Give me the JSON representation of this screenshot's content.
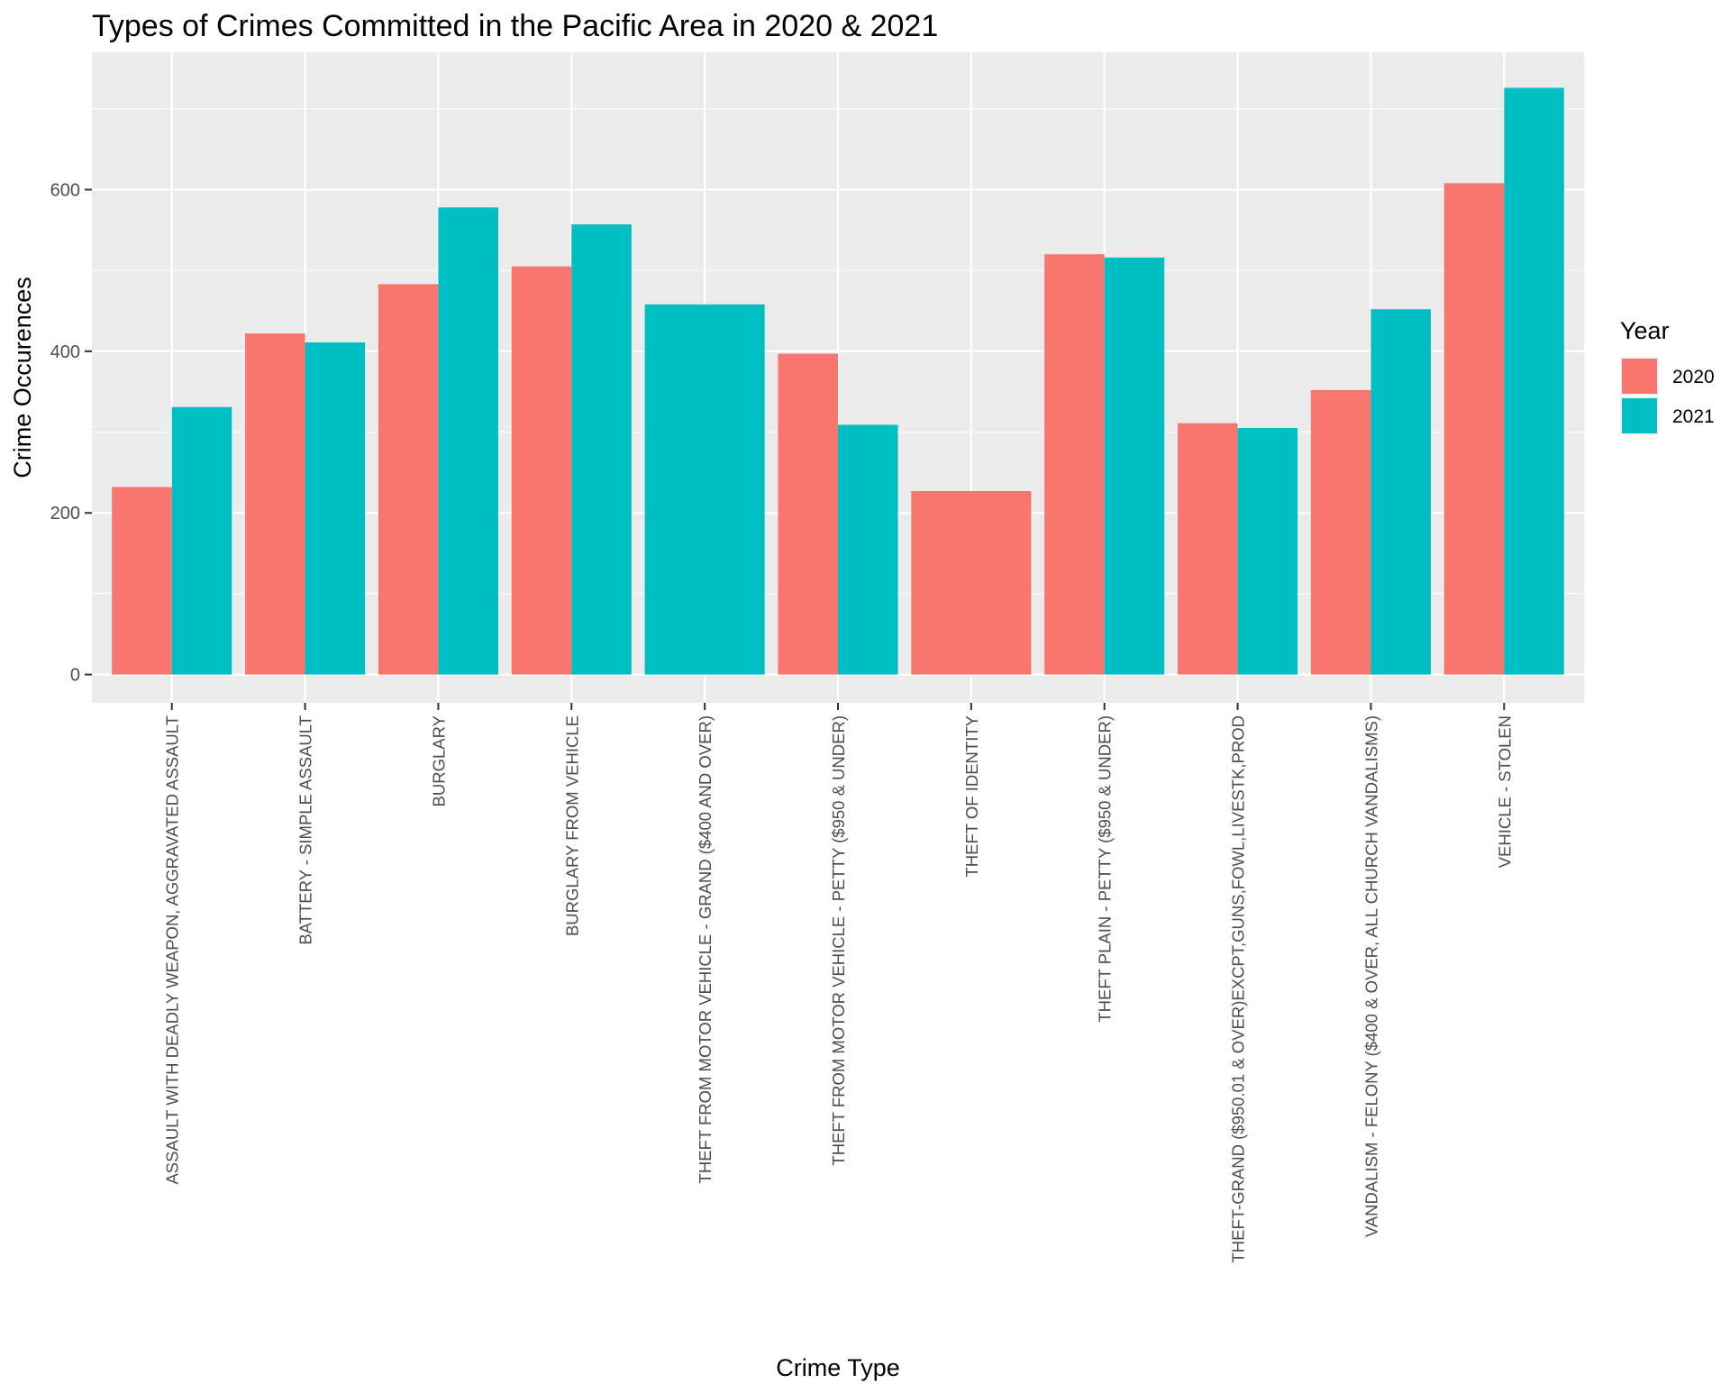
{
  "chart_data": {
    "type": "bar",
    "title": "Types of Crimes Committed in the Pacific Area in 2020 & 2021",
    "xlabel": "Crime Type",
    "ylabel": "Crime Occurences",
    "ylim": [
      -35,
      770
    ],
    "yticks": [
      0,
      200,
      400,
      600
    ],
    "grid": true,
    "legend": {
      "title": "Year",
      "position": "right"
    },
    "categories": [
      "ASSAULT WITH DEADLY WEAPON, AGGRAVATED ASSAULT",
      "BATTERY - SIMPLE ASSAULT",
      "BURGLARY",
      "BURGLARY FROM VEHICLE",
      "THEFT FROM MOTOR VEHICLE - GRAND ($400 AND OVER)",
      "THEFT FROM MOTOR VEHICLE - PETTY ($950 & UNDER)",
      "THEFT OF IDENTITY",
      "THEFT PLAIN - PETTY ($950 & UNDER)",
      "THEFT-GRAND ($950.01 & OVER)EXCPT,GUNS,FOWL,LIVESTK,PROD",
      "VANDALISM - FELONY ($400 & OVER, ALL CHURCH VANDALISMS)",
      "VEHICLE - STOLEN"
    ],
    "series": [
      {
        "name": "2020",
        "color": "#F8766D",
        "values": [
          232,
          422,
          483,
          505,
          null,
          397,
          227,
          520,
          311,
          352,
          608
        ]
      },
      {
        "name": "2021",
        "color": "#00BFC4",
        "values": [
          331,
          411,
          578,
          557,
          458,
          309,
          null,
          516,
          305,
          452,
          726
        ]
      }
    ]
  }
}
